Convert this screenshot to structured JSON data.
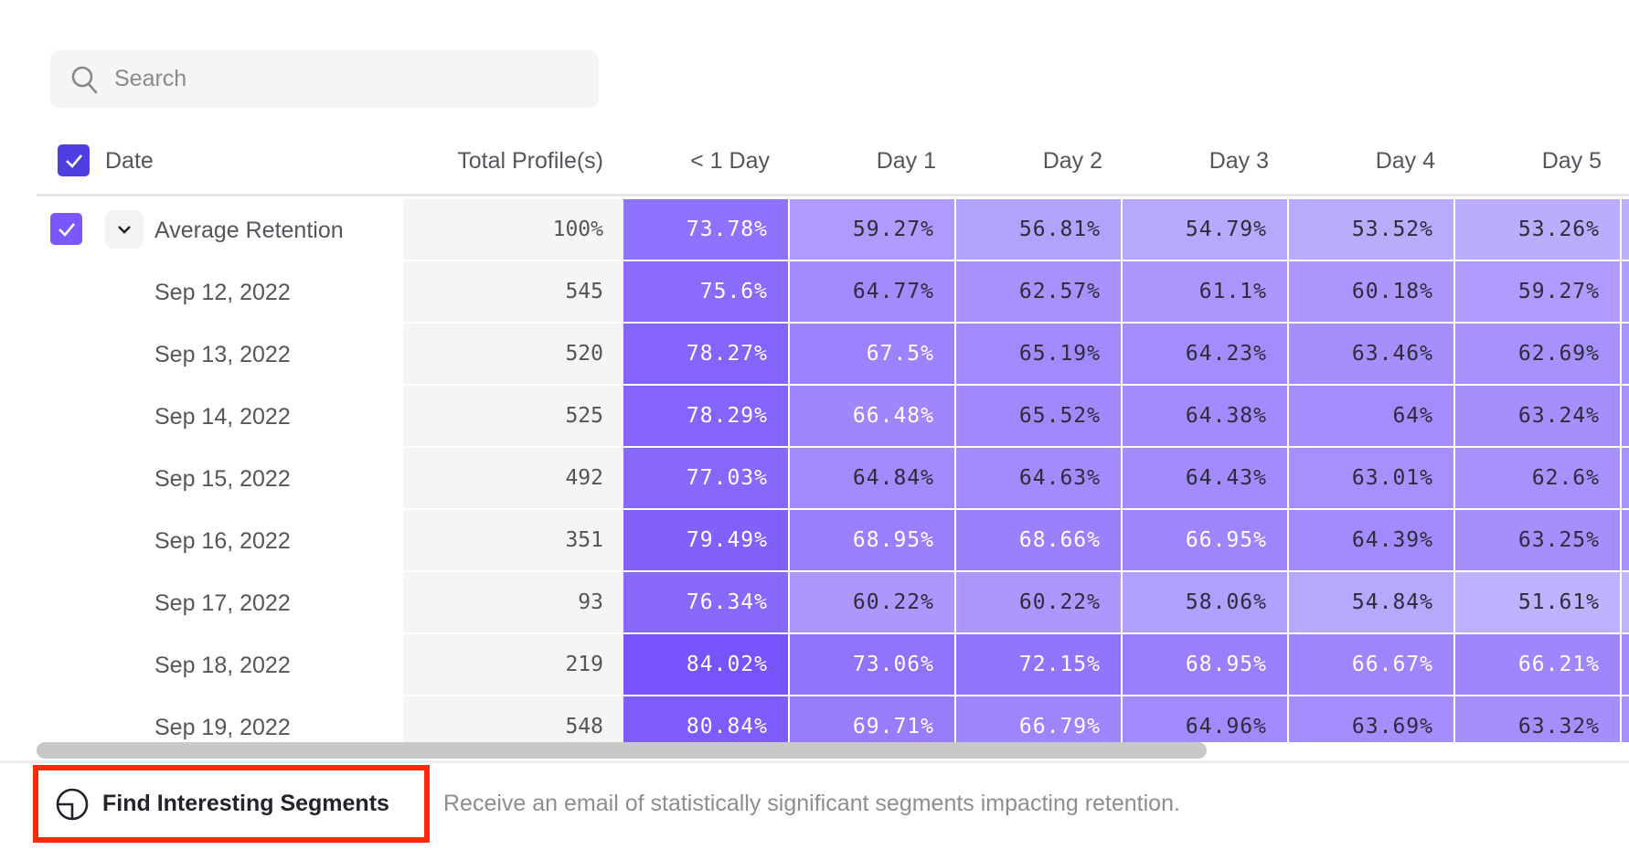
{
  "search": {
    "placeholder": "Search",
    "icon": "search-icon"
  },
  "table": {
    "headers": {
      "date": "Date",
      "total": "Total Profile(s)",
      "days": [
        "< 1 Day",
        "Day 1",
        "Day 2",
        "Day 3",
        "Day 4",
        "Day 5"
      ]
    },
    "average": {
      "label": "Average Retention",
      "total": "100%",
      "values": [
        "73.78%",
        "59.27%",
        "56.81%",
        "54.79%",
        "53.52%",
        "53.26%"
      ]
    },
    "rows": [
      {
        "date": "Sep 12, 2022",
        "total": "545",
        "values": [
          "75.6%",
          "64.77%",
          "62.57%",
          "61.1%",
          "60.18%",
          "59.27%"
        ]
      },
      {
        "date": "Sep 13, 2022",
        "total": "520",
        "values": [
          "78.27%",
          "67.5%",
          "65.19%",
          "64.23%",
          "63.46%",
          "62.69%"
        ]
      },
      {
        "date": "Sep 14, 2022",
        "total": "525",
        "values": [
          "78.29%",
          "66.48%",
          "65.52%",
          "64.38%",
          "64%",
          "63.24%"
        ]
      },
      {
        "date": "Sep 15, 2022",
        "total": "492",
        "values": [
          "77.03%",
          "64.84%",
          "64.63%",
          "64.43%",
          "63.01%",
          "62.6%"
        ]
      },
      {
        "date": "Sep 16, 2022",
        "total": "351",
        "values": [
          "79.49%",
          "68.95%",
          "68.66%",
          "66.95%",
          "64.39%",
          "63.25%"
        ]
      },
      {
        "date": "Sep 17, 2022",
        "total": "93",
        "values": [
          "76.34%",
          "60.22%",
          "60.22%",
          "58.06%",
          "54.84%",
          "51.61%"
        ]
      },
      {
        "date": "Sep 18, 2022",
        "total": "219",
        "values": [
          "84.02%",
          "73.06%",
          "72.15%",
          "68.95%",
          "66.67%",
          "66.21%"
        ]
      },
      {
        "date": "Sep 19, 2022",
        "total": "548",
        "values": [
          "80.84%",
          "69.71%",
          "66.79%",
          "64.96%",
          "63.69%",
          "63.32%"
        ]
      }
    ]
  },
  "footer": {
    "button_label": "Find Interesting Segments",
    "description": "Receive an email of statistically significant segments impacting retention."
  },
  "colors": {
    "accent": "#4f3fe0",
    "heat_low": "#c2b6fd",
    "heat_high": "#7550fc",
    "highlight_border": "#ff2a0a"
  }
}
